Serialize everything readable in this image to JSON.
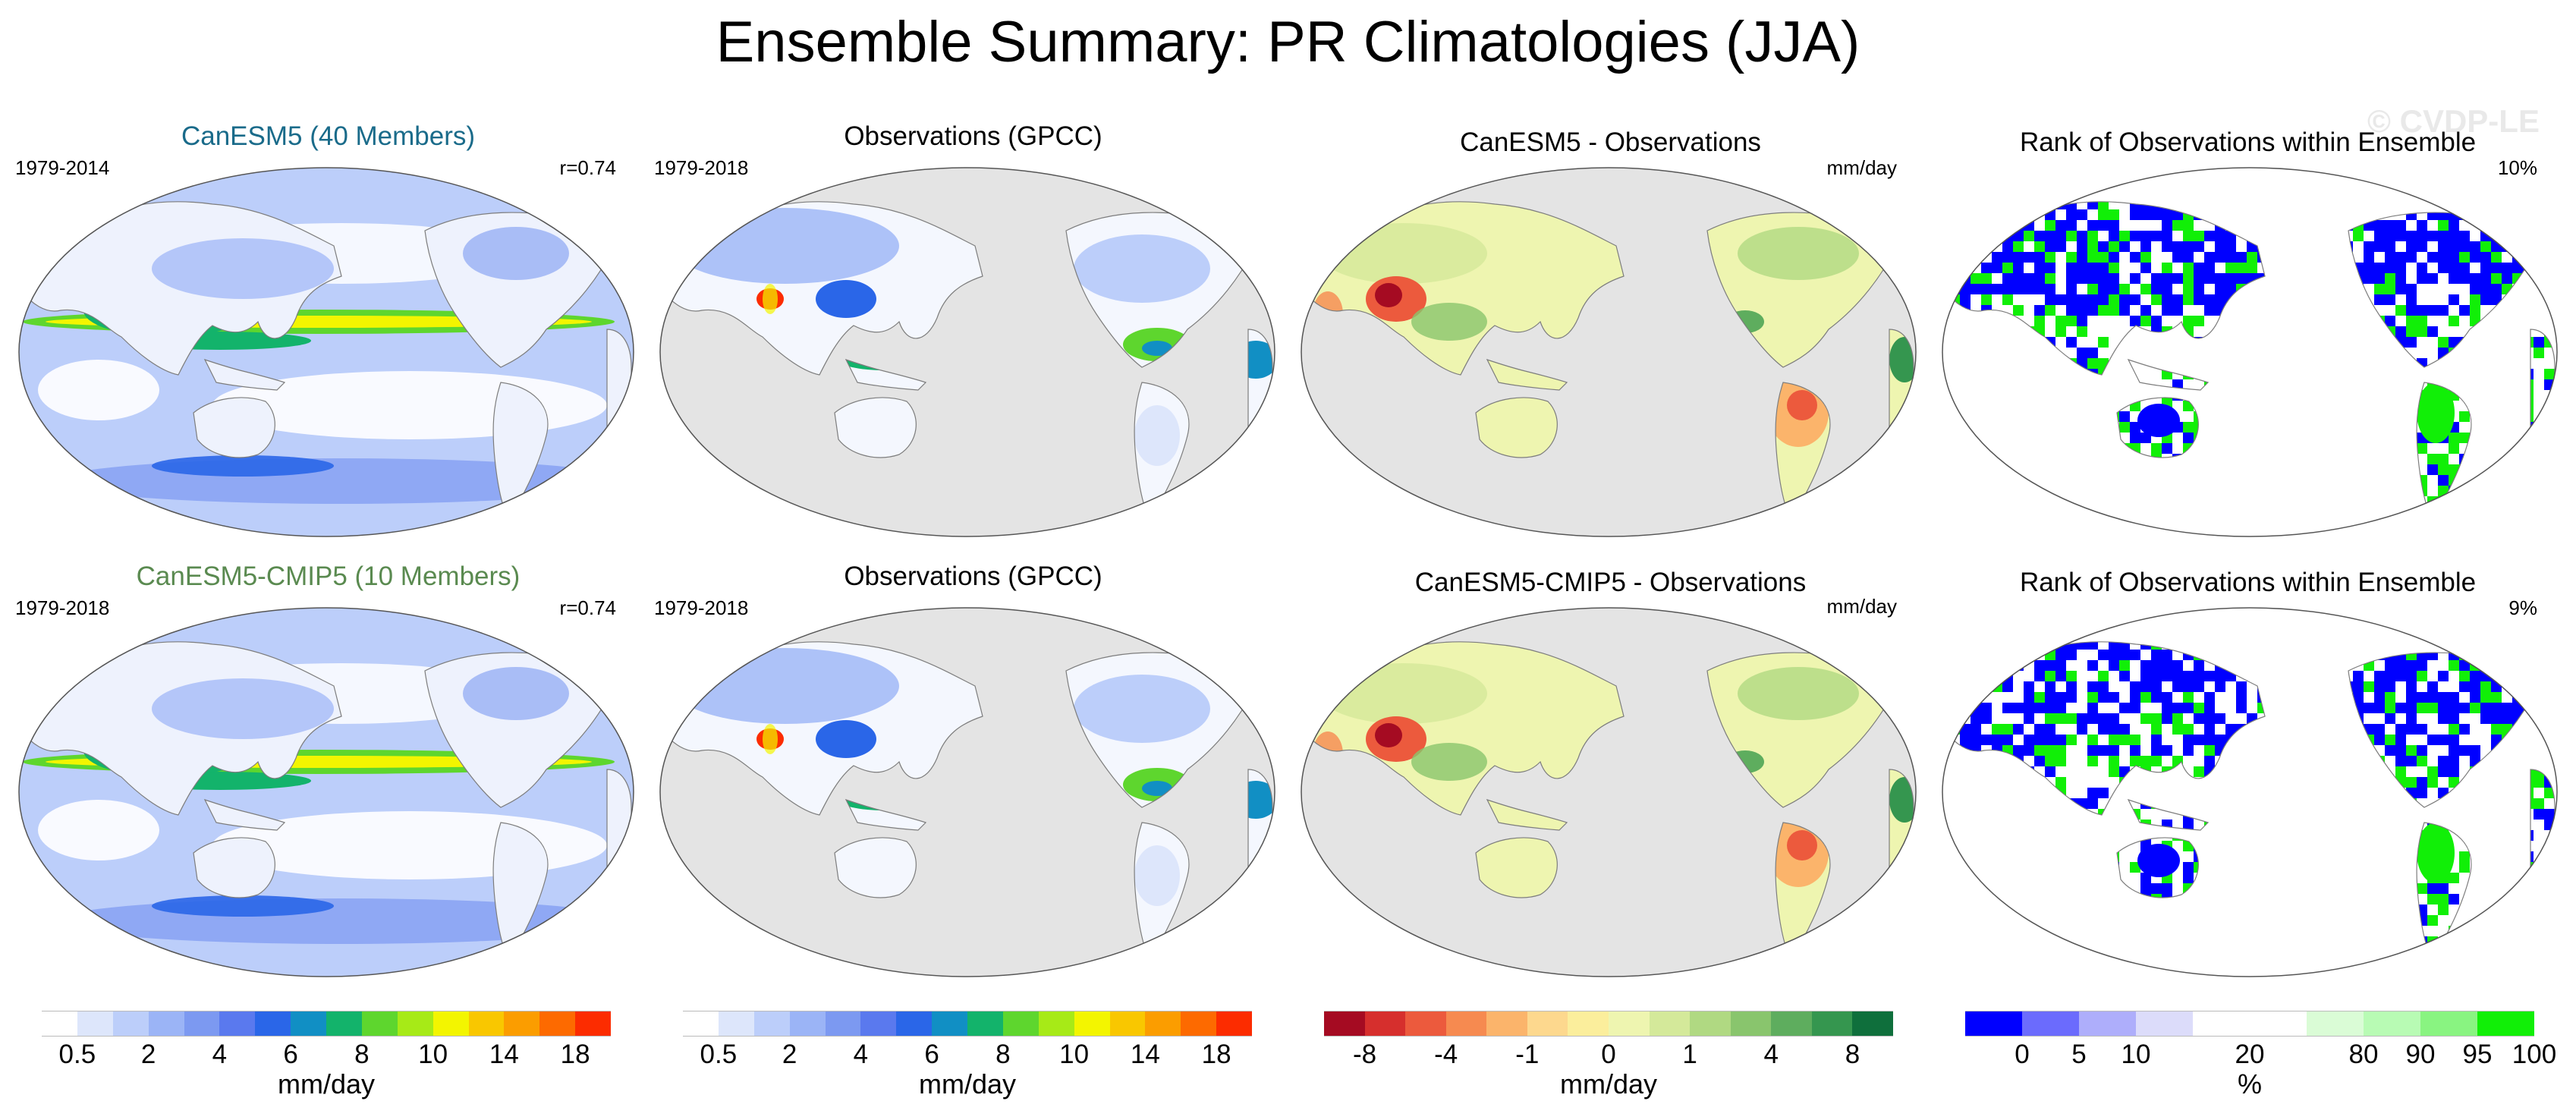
{
  "figure_title": "Ensemble Summary: PR Climatologies (JJA)",
  "watermark": "© CVDP-LE",
  "colors": {
    "land_outline": "#7d7d7d",
    "ocean_gray": "#e4e4e4",
    "model_title_row1": "#1a6b8a",
    "model_title_row2": "#5a8a50",
    "rank_low": "#0000ff",
    "rank_high": "#00ee00"
  },
  "rows": [
    {
      "panels": [
        {
          "kind": "model",
          "title": "CanESM5 (40 Members)",
          "left_label": "1979-2014",
          "right_label": "r=0.74"
        },
        {
          "kind": "obs",
          "title": "Observations (GPCC)",
          "left_label": "1979-2018",
          "right_label": ""
        },
        {
          "kind": "diff",
          "title": "CanESM5 - Observations",
          "left_label": "",
          "right_label": "mm/day"
        },
        {
          "kind": "rank",
          "title": "Rank of Observations within Ensemble",
          "left_label": "",
          "right_label": "10%"
        }
      ]
    },
    {
      "panels": [
        {
          "kind": "model",
          "title": "CanESM5-CMIP5 (10 Members)",
          "left_label": "1979-2018",
          "right_label": "r=0.74"
        },
        {
          "kind": "obs",
          "title": "Observations (GPCC)",
          "left_label": "1979-2018",
          "right_label": ""
        },
        {
          "kind": "diff",
          "title": "CanESM5-CMIP5 - Observations",
          "left_label": "",
          "right_label": "mm/day"
        },
        {
          "kind": "rank",
          "title": "Rank of Observations within Ensemble",
          "left_label": "",
          "right_label": "9%"
        }
      ]
    }
  ],
  "colorbars": [
    {
      "name": "precip-model",
      "colors": [
        "#ffffff",
        "#dde6fb",
        "#bccefa",
        "#9bb4f6",
        "#7c99f1",
        "#5a79ee",
        "#2a66e8",
        "#118fc4",
        "#13b36b",
        "#5ed62e",
        "#a7ea17",
        "#f3f500",
        "#f9c700",
        "#fb9d00",
        "#fd6a00",
        "#fc2c00"
      ],
      "labels": [
        "0.5",
        "2",
        "4",
        "6",
        "8",
        "10",
        "14",
        "18"
      ],
      "label_positions": [
        1,
        3,
        5,
        7,
        9,
        11,
        13,
        15
      ],
      "unit": "mm/day"
    },
    {
      "name": "precip-obs",
      "colors": [
        "#ffffff",
        "#dde6fb",
        "#bccefa",
        "#9bb4f6",
        "#7c99f1",
        "#5a79ee",
        "#2a66e8",
        "#118fc4",
        "#13b36b",
        "#5ed62e",
        "#a7ea17",
        "#f3f500",
        "#f9c700",
        "#fb9d00",
        "#fd6a00",
        "#fc2c00"
      ],
      "labels": [
        "0.5",
        "2",
        "4",
        "6",
        "8",
        "10",
        "14",
        "18"
      ],
      "label_positions": [
        1,
        3,
        5,
        7,
        9,
        11,
        13,
        15
      ],
      "unit": "mm/day"
    },
    {
      "name": "precip-diff",
      "colors": [
        "#a50b22",
        "#d62f2d",
        "#ec5a3d",
        "#f68a50",
        "#fbb46b",
        "#fdd88e",
        "#fbee9c",
        "#eef5b0",
        "#d4e99a",
        "#b0d982",
        "#89c56d",
        "#5ead5e",
        "#35964f",
        "#0f6f3c"
      ],
      "labels": [
        "-8",
        "-4",
        "-1",
        "0",
        "1",
        "4",
        "8"
      ],
      "label_positions": [
        1,
        3,
        5,
        7,
        9,
        11,
        13
      ],
      "unit": "mm/day"
    },
    {
      "name": "rank",
      "colors": [
        "#0000ff",
        "#6b6bfd",
        "#aeaefb",
        "#dcdcfa",
        "#ffffff",
        "#ffffff",
        "#dafcd6",
        "#b8fbb4",
        "#89f481",
        "#11ef07"
      ],
      "labels": [
        "0",
        "5",
        "10",
        "20",
        "80",
        "90",
        "95",
        "100"
      ],
      "label_positions": [
        1,
        2,
        3,
        5,
        7,
        8,
        9,
        10
      ],
      "unit": "%"
    }
  ]
}
